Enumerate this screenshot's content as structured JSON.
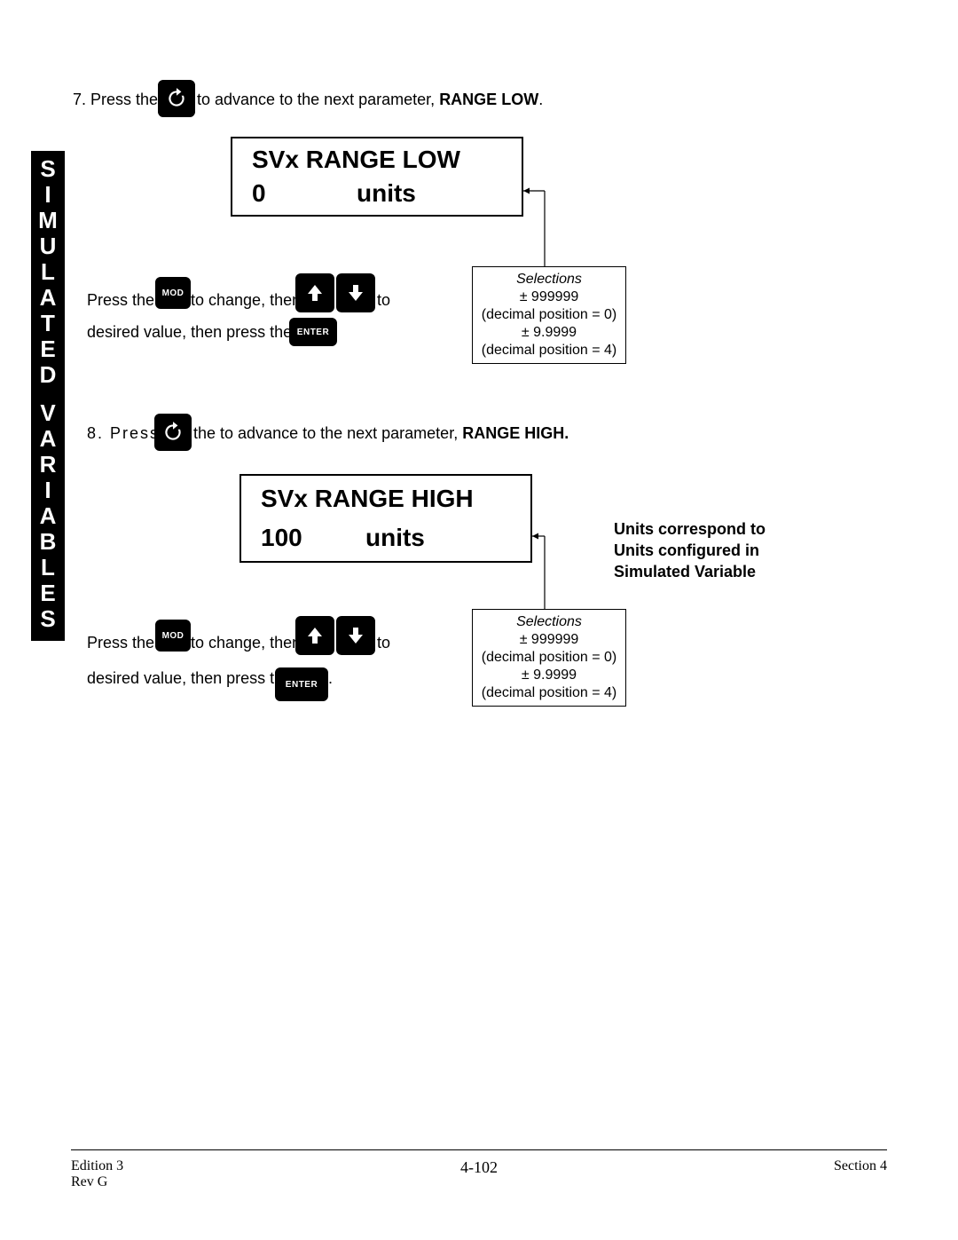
{
  "side_label": {
    "word1": [
      "S",
      "I",
      "M",
      "U",
      "L",
      "A",
      "T",
      "E",
      "D"
    ],
    "word2": [
      "V",
      "A",
      "R",
      "I",
      "A",
      "B",
      "L",
      "E",
      "S"
    ]
  },
  "step7": {
    "prefix": "7.  Press the",
    "suffix_a": "to advance to the next parameter, ",
    "bold": "RANGE LOW",
    "suffix_b": "."
  },
  "panel1": {
    "title": "SVx  RANGE  LOW",
    "value": "0",
    "units": "units"
  },
  "instr1": {
    "a": "Press the",
    "b": "to change, then",
    "c": "to",
    "d": "desired value, then press the   ."
  },
  "callout1": {
    "title": "Selections",
    "l1": "± 999999",
    "l2": "(decimal position = 0)",
    "l3": "± 9.9999",
    "l4": "(decimal position = 4)"
  },
  "step8": {
    "prefix": "8.    Press",
    "suffix_a": "the to advance to the next parameter, ",
    "bold": "RANGE HIGH."
  },
  "panel2": {
    "title": "SVx  RANGE  HIGH",
    "value": "100",
    "units": "units"
  },
  "instr2": {
    "a": "Press the",
    "b": "to change, then",
    "c": "to",
    "d": "desired value, then press the",
    "e": "."
  },
  "callout2": {
    "title": "Selections",
    "l1": "± 999999",
    "l2": "(decimal position = 0)",
    "l3": "± 9.9999",
    "l4": "(decimal position = 4)"
  },
  "note": {
    "l1": "Units correspond to",
    "l2": "Units configured in",
    "l3": "Simulated Variable"
  },
  "keys": {
    "mod": "MOD",
    "enter": "ENTER"
  },
  "footer": {
    "left1": "Edition 3",
    "left2": "Rev G",
    "center": "4-102",
    "right": "Section 4"
  }
}
